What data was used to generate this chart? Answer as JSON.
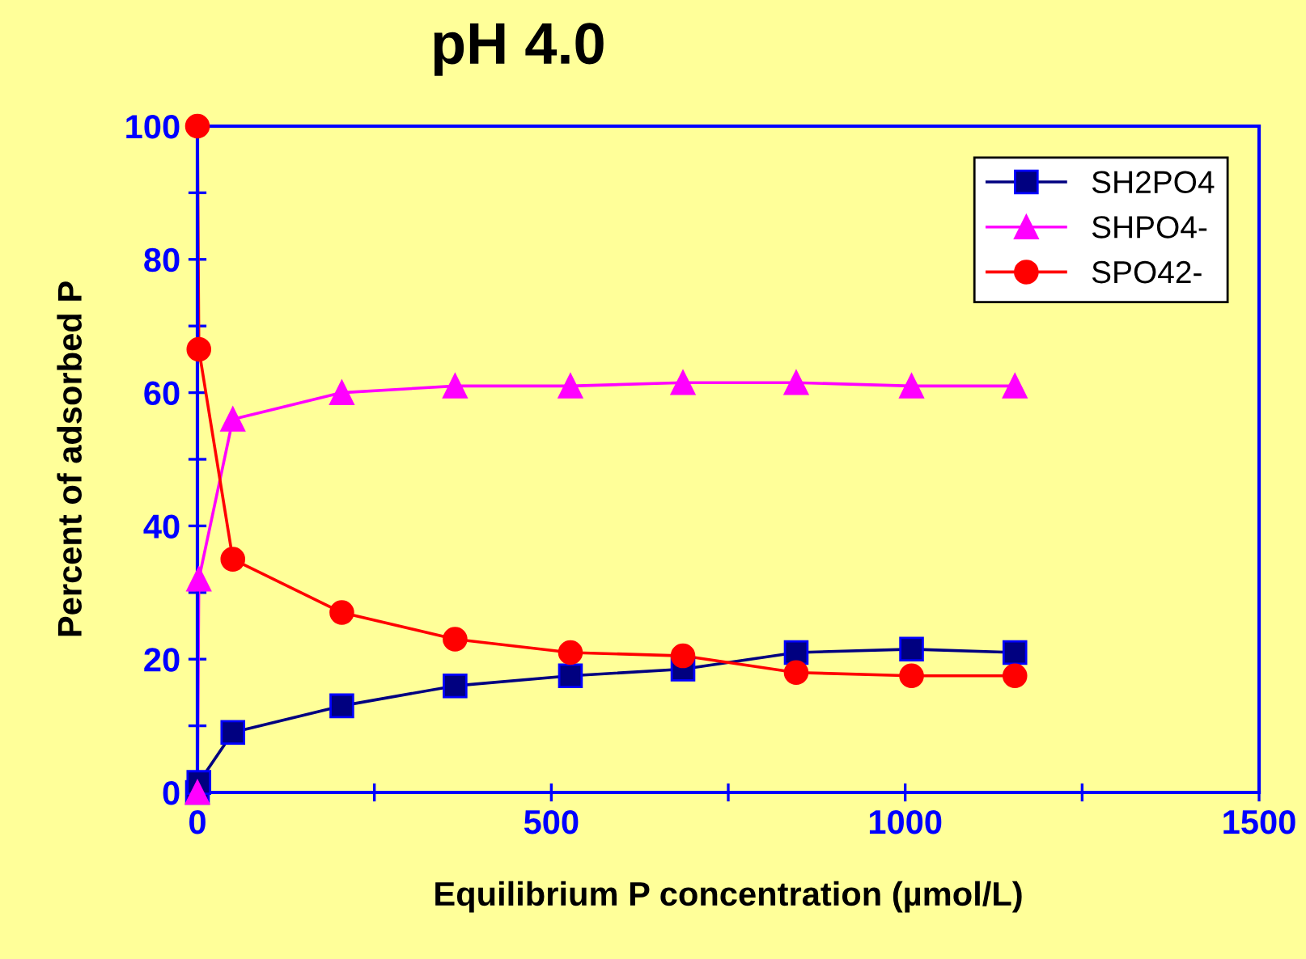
{
  "chart_data": {
    "type": "line",
    "title": "pH 4.0",
    "xlabel": "Equilibrium P concentration (µmol/L)",
    "ylabel": "Percent of adsorbed P",
    "x": [
      0,
      2,
      50,
      204,
      364,
      527,
      686,
      846,
      1009,
      1155
    ],
    "series": [
      {
        "name": "SH2PO4",
        "color": "#000080",
        "marker": "square",
        "values": [
          0,
          1.5,
          9,
          13,
          16,
          17.5,
          18.5,
          21,
          21.5,
          21
        ]
      },
      {
        "name": "SHPO4-",
        "color": "#ff00ff",
        "marker": "triangle",
        "values": [
          0,
          32,
          56,
          60,
          61,
          61,
          61.5,
          61.5,
          61,
          61
        ]
      },
      {
        "name": "SPO42-",
        "color": "#ff0000",
        "marker": "circle",
        "values": [
          100,
          66.5,
          35,
          27,
          23,
          21,
          20.5,
          18,
          17.5,
          17.5
        ]
      }
    ],
    "xlim": [
      0,
      1500
    ],
    "xticks": [
      0,
      {
        "value": 250,
        "label": null
      },
      500,
      {
        "value": 750,
        "label": null
      },
      1000,
      {
        "value": 1250,
        "label": null
      },
      1500
    ],
    "ylim": [
      0,
      100
    ],
    "yticks": [
      0,
      {
        "value": 10,
        "label": null
      },
      20,
      {
        "value": 30,
        "label": null
      },
      40,
      {
        "value": 50,
        "label": null
      },
      60,
      {
        "value": 70,
        "label": null
      },
      80,
      {
        "value": 90,
        "label": null
      },
      100
    ],
    "grid": false,
    "legend": "top right",
    "line_style": "solid"
  }
}
